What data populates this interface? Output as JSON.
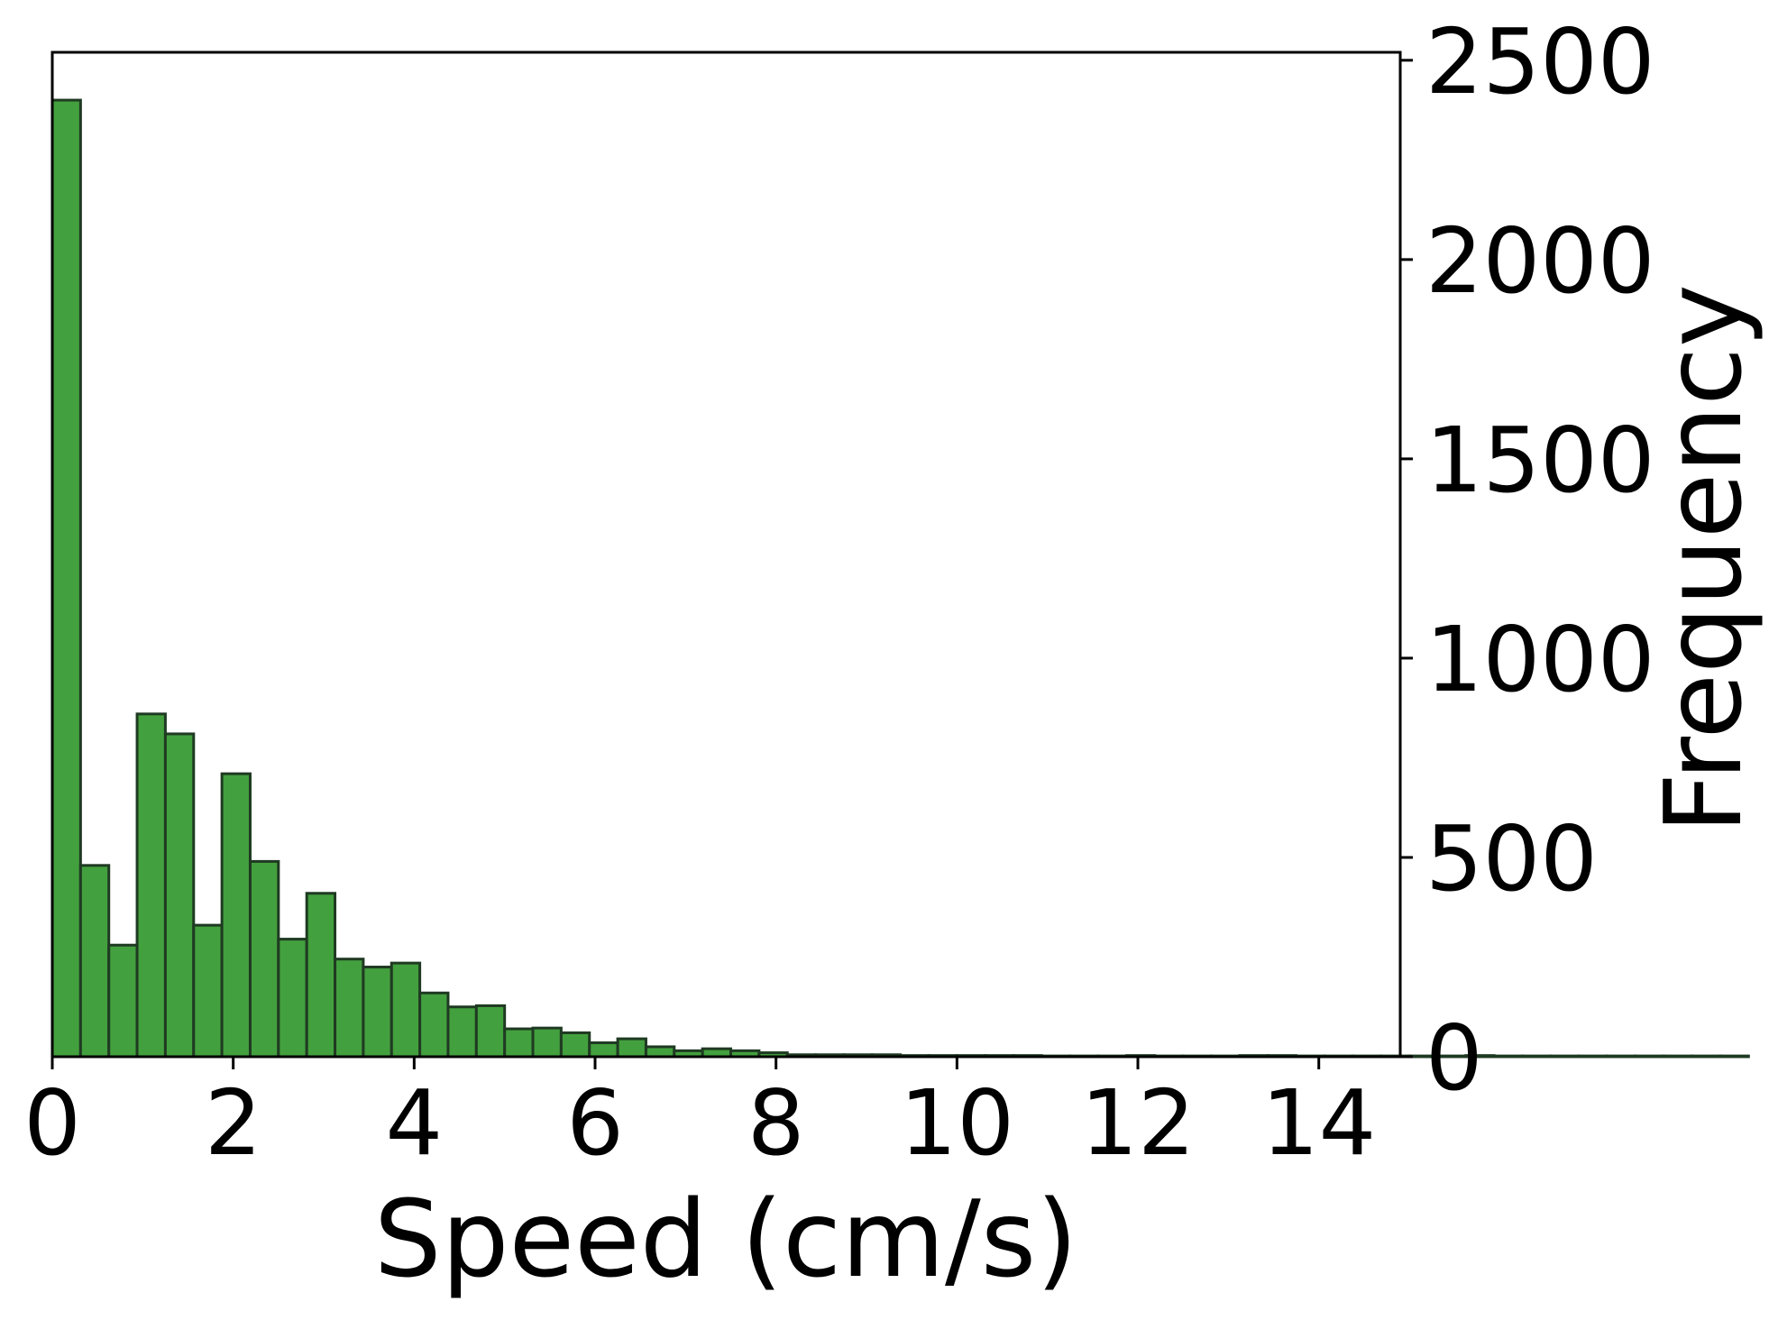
{
  "colors": {
    "bar_fill": "#43a03e",
    "bar_edge": "#1f3a22",
    "axis": "#000000",
    "background": "#ffffff"
  },
  "chart_data": {
    "type": "bar",
    "title": "",
    "xlabel": "Speed (cm/s)",
    "ylabel": "Frequency",
    "y_axis_position": "right",
    "grid": false,
    "legend": "none",
    "xlim": [
      0,
      14.9
    ],
    "ylim": [
      0,
      2520
    ],
    "x_ticks": [
      0,
      2,
      4,
      6,
      8,
      10,
      12,
      14
    ],
    "x_tick_labels": [
      "0",
      "2",
      "4",
      "6",
      "8",
      "10",
      "12",
      "14"
    ],
    "y_ticks": [
      0,
      500,
      1000,
      1500,
      2000,
      2500
    ],
    "y_tick_labels": [
      "0",
      "500",
      "1000",
      "1500",
      "2000",
      "2500"
    ],
    "bin_width": 0.3125,
    "bin_start": 0,
    "values": [
      2400,
      480,
      280,
      860,
      810,
      330,
      710,
      490,
      295,
      410,
      245,
      225,
      235,
      160,
      125,
      128,
      70,
      72,
      60,
      35,
      45,
      25,
      15,
      20,
      15,
      10,
      5,
      5,
      5,
      5,
      3,
      3,
      3,
      3,
      3,
      2,
      2,
      2,
      3,
      2,
      2,
      2,
      3,
      3,
      2,
      2,
      2,
      2,
      2,
      2,
      3,
      2,
      2,
      2,
      2,
      2,
      2,
      2,
      2,
      2
    ]
  }
}
